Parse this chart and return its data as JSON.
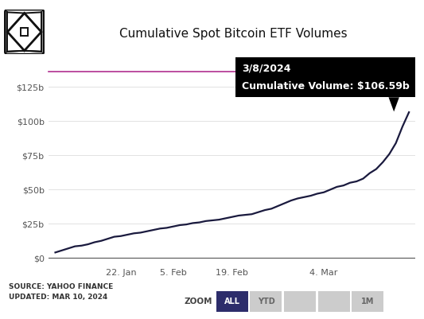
{
  "title": "Cumulative Spot Bitcoin ETF Volumes",
  "bg_color": "#ffffff",
  "line_color": "#1a1a3e",
  "line_width": 1.6,
  "x_tick_labels": [
    "22. Jan",
    "5. Feb",
    "19. Feb",
    "4. Mar"
  ],
  "y_tick_labels": [
    "$0",
    "$25b",
    "$50b",
    "$75b",
    "$100b",
    "$125b"
  ],
  "y_ticks": [
    0,
    25,
    50,
    75,
    100,
    125
  ],
  "ylim": [
    -5,
    135
  ],
  "source_text": "SOURCE: YAHOO FINANCE\nUPDATED: MAR 10, 2024",
  "tooltip_date": "3/8/2024",
  "tooltip_value": "Cumulative Volume: $106.59b",
  "tooltip_bg": "#000000",
  "tooltip_text_color": "#ffffff",
  "pink_line_color": "#b03090",
  "zoom_label": "ZOOM",
  "zoom_buttons": [
    "ALL",
    "YTD",
    "",
    "",
    "1M"
  ],
  "zoom_active": "ALL",
  "zoom_active_color": "#2d2d6b",
  "zoom_inactive_color": "#cccccc",
  "x_values": [
    0,
    1,
    2,
    3,
    4,
    5,
    6,
    7,
    8,
    9,
    10,
    11,
    12,
    13,
    14,
    15,
    16,
    17,
    18,
    19,
    20,
    21,
    22,
    23,
    24,
    25,
    26,
    27,
    28,
    29,
    30,
    31,
    32,
    33,
    34,
    35,
    36,
    37,
    38,
    39,
    40,
    41,
    42,
    43,
    44,
    45,
    46,
    47,
    48,
    49,
    50,
    51,
    52,
    53,
    54
  ],
  "y_values": [
    4,
    5.5,
    7,
    8.5,
    9,
    10,
    11.5,
    12.5,
    14,
    15.5,
    16,
    17,
    18,
    18.5,
    19.5,
    20.5,
    21.5,
    22,
    23,
    24,
    24.5,
    25.5,
    26,
    27,
    27.5,
    28,
    29,
    30,
    31,
    31.5,
    32,
    33.5,
    35,
    36,
    38,
    40,
    42,
    43.5,
    44.5,
    45.5,
    47,
    48,
    50,
    52,
    53,
    55,
    56,
    58,
    62,
    65,
    70,
    76,
    84,
    96,
    106.59
  ],
  "x_tick_positions": [
    10,
    18,
    27,
    41
  ]
}
